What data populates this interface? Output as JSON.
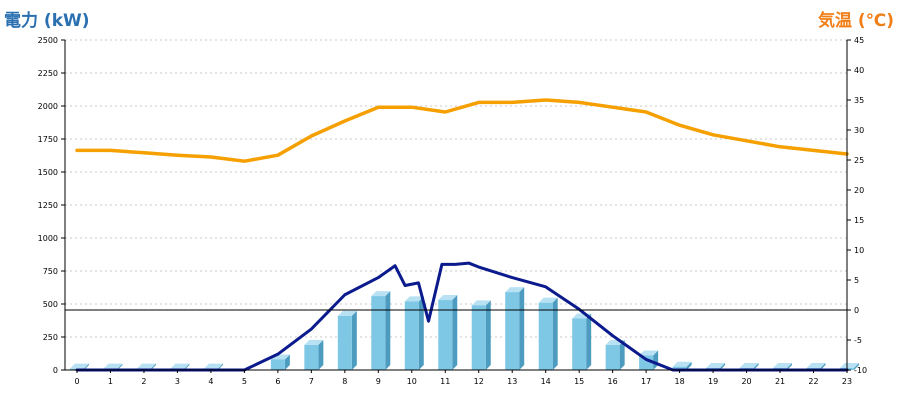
{
  "chart_data": {
    "type": "bar",
    "y_left_title": "電力 (kW)",
    "y_right_title": "気温 (℃)",
    "y_left_ticks": [
      "0",
      "250",
      "500",
      "750",
      "1000",
      "1250",
      "1500",
      "1750",
      "2000",
      "2250",
      "2500"
    ],
    "y_right_ticks": [
      "-10",
      "-5",
      "0",
      "5",
      "10",
      "15",
      "20",
      "25",
      "30",
      "35",
      "40",
      "45"
    ],
    "ylim_left": [
      0,
      2500
    ],
    "ylim_right": [
      -10,
      45
    ],
    "grid": true,
    "categories": [
      "0",
      "1",
      "2",
      "3",
      "4",
      "5",
      "6",
      "7",
      "8",
      "9",
      "10",
      "11",
      "12",
      "13",
      "14",
      "15",
      "16",
      "17",
      "18",
      "19",
      "20",
      "21",
      "22",
      "23"
    ],
    "series": [
      {
        "kind": "bar",
        "axis": "left",
        "color": "#7ec8e6",
        "values": [
          10,
          10,
          10,
          10,
          10,
          0,
          80,
          190,
          410,
          560,
          520,
          530,
          490,
          590,
          510,
          390,
          190,
          110,
          25,
          15,
          15,
          15,
          15,
          15
        ]
      },
      {
        "kind": "line",
        "axis": "left",
        "color": "#0b1a8c",
        "points": [
          [
            0,
            0
          ],
          [
            5,
            0
          ],
          [
            6,
            120
          ],
          [
            7,
            310
          ],
          [
            8,
            570
          ],
          [
            9,
            700
          ],
          [
            9.5,
            790
          ],
          [
            9.8,
            640
          ],
          [
            10.2,
            660
          ],
          [
            10.5,
            370
          ],
          [
            10.9,
            800
          ],
          [
            11.3,
            800
          ],
          [
            11.7,
            810
          ],
          [
            12,
            780
          ],
          [
            13,
            700
          ],
          [
            14,
            630
          ],
          [
            15,
            460
          ],
          [
            16,
            260
          ],
          [
            17,
            80
          ],
          [
            17.8,
            0
          ],
          [
            23,
            0
          ]
        ]
      },
      {
        "kind": "line",
        "axis": "right",
        "color": "#f5a000",
        "values": [
          26.6,
          26.6,
          26.2,
          25.8,
          25.5,
          24.8,
          25.8,
          29,
          31.5,
          33.8,
          33.8,
          33,
          34.6,
          34.6,
          35,
          34.6,
          33.8,
          33,
          30.8,
          29.2,
          28.2,
          27.2,
          26.6,
          26
        ]
      }
    ]
  }
}
